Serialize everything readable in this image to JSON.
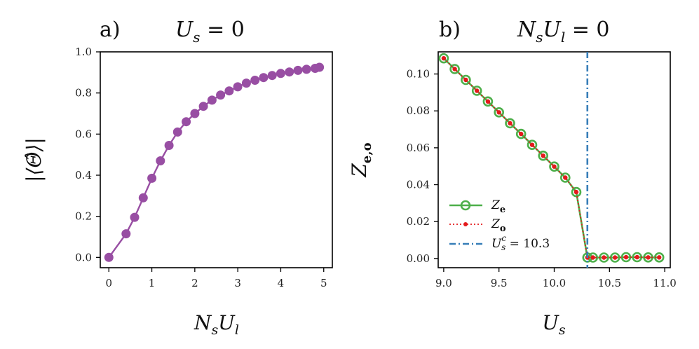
{
  "chart_data": [
    {
      "type": "line",
      "panel_label": "a)",
      "title": "U_s = 0",
      "title_main": "U",
      "title_sub": "s",
      "title_rest": " = 0",
      "xlabel": "N_sU_l",
      "xlabel_parts": [
        "N",
        "s",
        "U",
        "l"
      ],
      "ylabel": "|⟨Θ̂⟩|",
      "xlim": [
        -0.2,
        5.2
      ],
      "ylim": [
        -0.05,
        1.0
      ],
      "xticks": [
        0,
        1,
        2,
        3,
        4,
        5
      ],
      "yticks": [
        0.0,
        0.2,
        0.4,
        0.6,
        0.8,
        1.0
      ],
      "xtick_labels": [
        "0",
        "1",
        "2",
        "3",
        "4",
        "5"
      ],
      "ytick_labels": [
        "0.0",
        "0.2",
        "0.4",
        "0.6",
        "0.8",
        "1.0"
      ],
      "series": [
        {
          "name": "|⟨Θ⟩|",
          "color": "#984ea3",
          "x": [
            0.0,
            0.4,
            0.6,
            0.8,
            1.0,
            1.2,
            1.4,
            1.6,
            1.8,
            2.0,
            2.2,
            2.4,
            2.6,
            2.8,
            3.0,
            3.2,
            3.4,
            3.6,
            3.8,
            4.0,
            4.2,
            4.4,
            4.6,
            4.8,
            4.9
          ],
          "values": [
            0.0,
            0.115,
            0.195,
            0.29,
            0.385,
            0.47,
            0.545,
            0.61,
            0.66,
            0.7,
            0.735,
            0.765,
            0.79,
            0.81,
            0.83,
            0.848,
            0.862,
            0.875,
            0.885,
            0.895,
            0.902,
            0.91,
            0.915,
            0.92,
            0.925
          ]
        }
      ]
    },
    {
      "type": "line",
      "panel_label": "b)",
      "title": "N_sU_l = 0",
      "title_parts": [
        "N",
        "s",
        "U",
        "l",
        " = 0"
      ],
      "xlabel": "U_s",
      "xlabel_parts": [
        "U",
        "s"
      ],
      "ylabel": "Z_e,o",
      "ylabel_parts": [
        "Z",
        "e,o"
      ],
      "xlim": [
        8.95,
        11.05
      ],
      "ylim": [
        -0.005,
        0.112
      ],
      "xticks": [
        9.0,
        9.5,
        10.0,
        10.5,
        11.0
      ],
      "yticks": [
        0.0,
        0.02,
        0.04,
        0.06,
        0.08,
        0.1
      ],
      "xtick_labels": [
        "9.0",
        "9.5",
        "10.0",
        "10.5",
        "11.0"
      ],
      "ytick_labels": [
        "0.00",
        "0.02",
        "0.04",
        "0.06",
        "0.08",
        "0.10"
      ],
      "series": [
        {
          "name": "Z_e",
          "legend_main": "Z",
          "legend_sub": "e",
          "color": "#4daf4a",
          "style": "solid-open-circle",
          "x": [
            9.0,
            9.1,
            9.2,
            9.3,
            9.4,
            9.5,
            9.6,
            9.7,
            9.8,
            9.9,
            10.0,
            10.1,
            10.2,
            10.3,
            10.35,
            10.45,
            10.55,
            10.65,
            10.75,
            10.85,
            10.95
          ],
          "values": [
            0.1085,
            0.1027,
            0.0968,
            0.0909,
            0.0851,
            0.0792,
            0.0733,
            0.0675,
            0.0616,
            0.0557,
            0.0498,
            0.0438,
            0.036,
            0.0005,
            0.0005,
            0.0005,
            0.0005,
            0.0007,
            0.0007,
            0.0006,
            0.0006
          ]
        },
        {
          "name": "Z_o",
          "legend_main": "Z",
          "legend_sub": "o",
          "color": "#e41a1c",
          "style": "dotted-dot",
          "x": [
            9.0,
            9.1,
            9.2,
            9.3,
            9.4,
            9.5,
            9.6,
            9.7,
            9.8,
            9.9,
            10.0,
            10.1,
            10.2,
            10.3,
            10.35,
            10.45,
            10.55,
            10.65,
            10.75,
            10.85,
            10.95
          ],
          "values": [
            0.1085,
            0.1027,
            0.0968,
            0.0909,
            0.0851,
            0.0792,
            0.0733,
            0.0675,
            0.0616,
            0.0557,
            0.0498,
            0.0438,
            0.036,
            0.0005,
            0.0005,
            0.0005,
            0.0005,
            0.0007,
            0.0007,
            0.0006,
            0.0006
          ]
        }
      ],
      "vline": {
        "name": "U_s^c = 10.3",
        "legend_main": "U",
        "legend_sub": "s",
        "legend_sup": "c",
        "legend_rest": " = 10.3",
        "x": 10.3,
        "color": "#377eb8",
        "style": "dash-dot"
      },
      "legend_position": "lower-left"
    }
  ]
}
